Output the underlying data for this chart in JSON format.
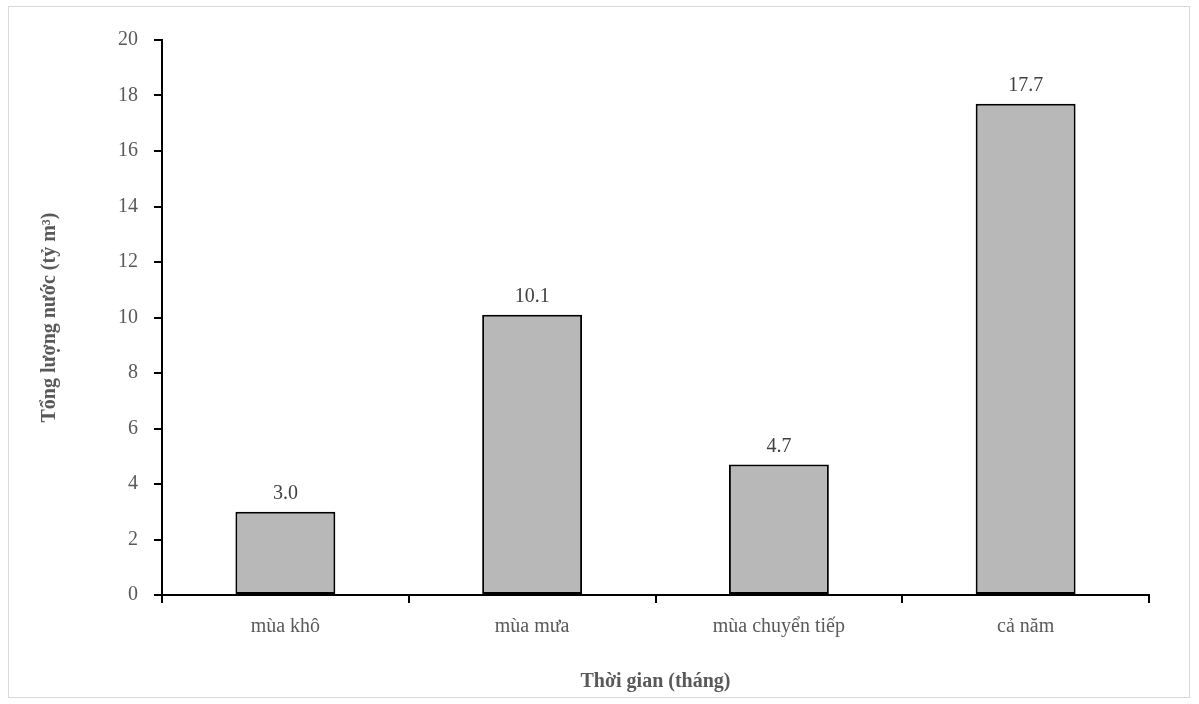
{
  "chart_data": {
    "type": "bar",
    "categories": [
      "mùa khô",
      "mùa mưa",
      "mùa chuyển tiếp",
      "cả năm"
    ],
    "values": [
      3.0,
      10.1,
      4.7,
      17.7
    ],
    "value_labels": [
      "3.0",
      "10.1",
      "4.7",
      "17.7"
    ],
    "color": "#b8b8b8",
    "xlabel": "Thời gian (tháng)",
    "ylabel": "Tổng lượng nước (tỷ m³)",
    "ylim": [
      0,
      20
    ],
    "yticks": [
      0,
      2,
      4,
      6,
      8,
      10,
      12,
      14,
      16,
      18,
      20
    ],
    "grid": false,
    "legend": false
  }
}
